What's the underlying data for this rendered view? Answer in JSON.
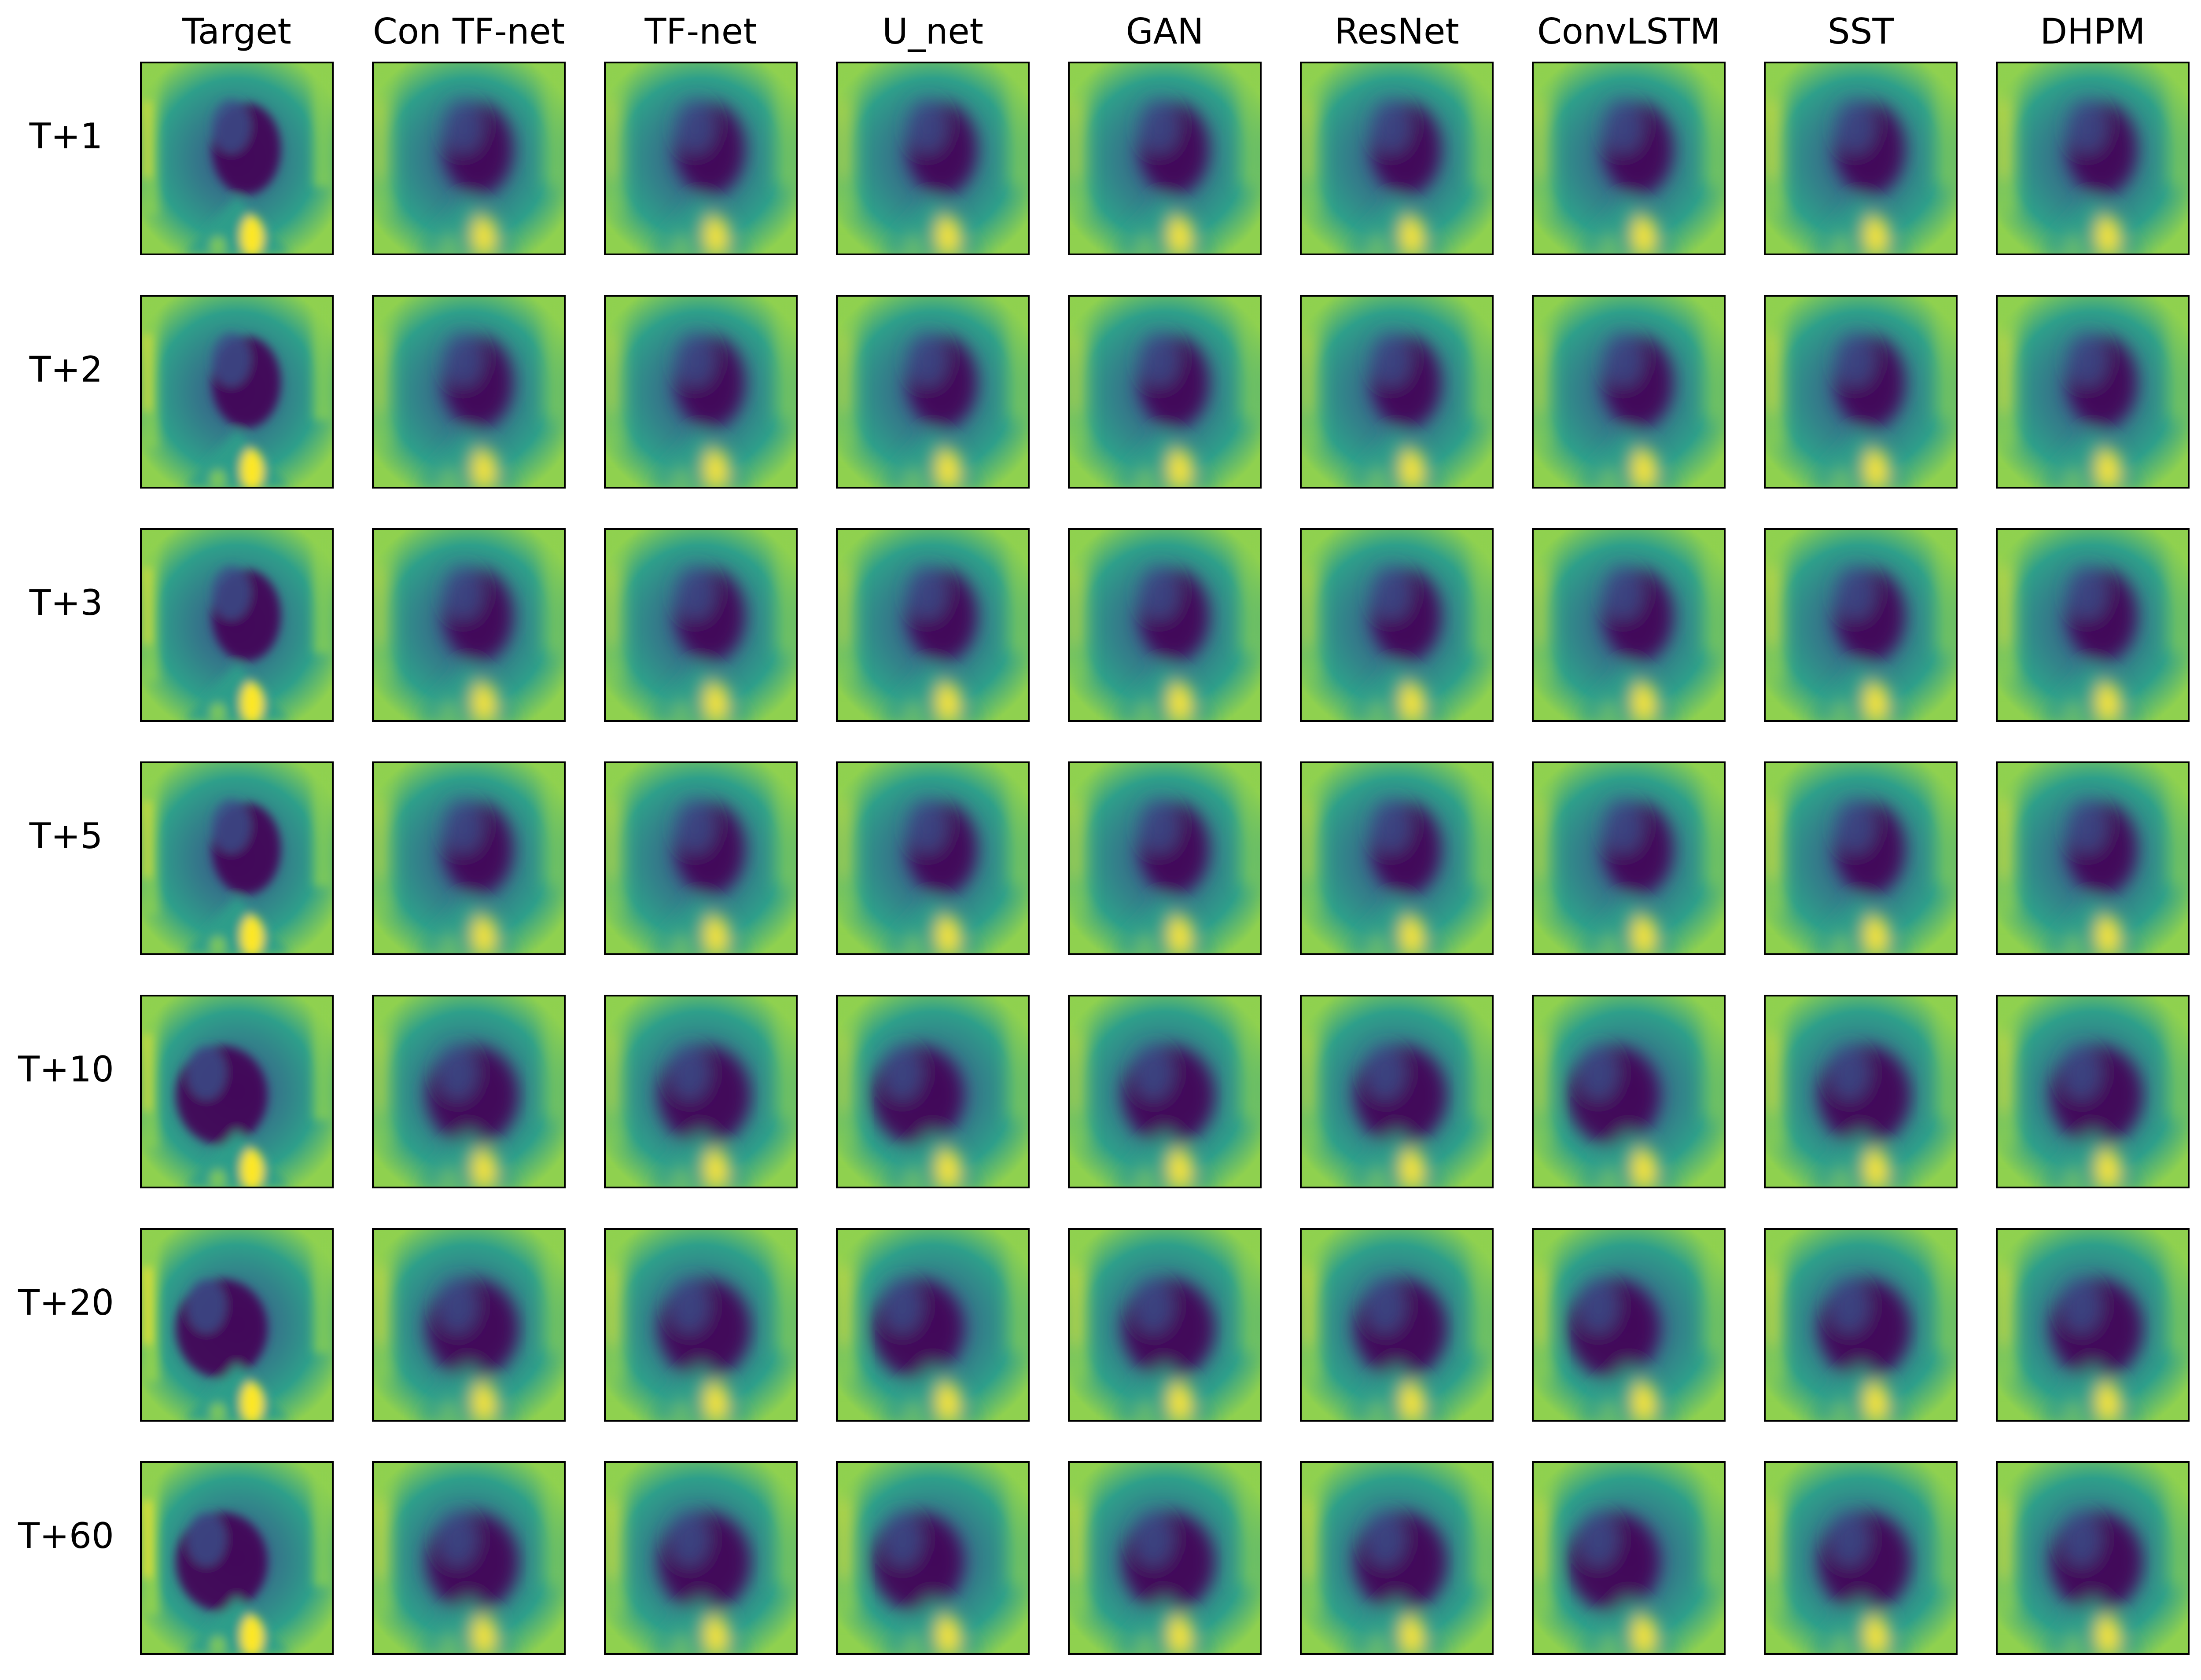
{
  "figure": {
    "columns": [
      "Target",
      "Con TF-net",
      "TF-net",
      "U_net",
      "GAN",
      "ResNet",
      "ConvLSTM",
      "SST",
      "DHPM"
    ],
    "rows": [
      "T+1",
      "T+2",
      "T+3",
      "T+5",
      "T+10",
      "T+20",
      "T+60"
    ]
  },
  "colormap": {
    "name": "viridis",
    "background": "#2e9f8a",
    "edge": "#8fd14f",
    "bright": "#fde725",
    "dark": "#440154",
    "mid_dark": "#3b4e8a"
  }
}
